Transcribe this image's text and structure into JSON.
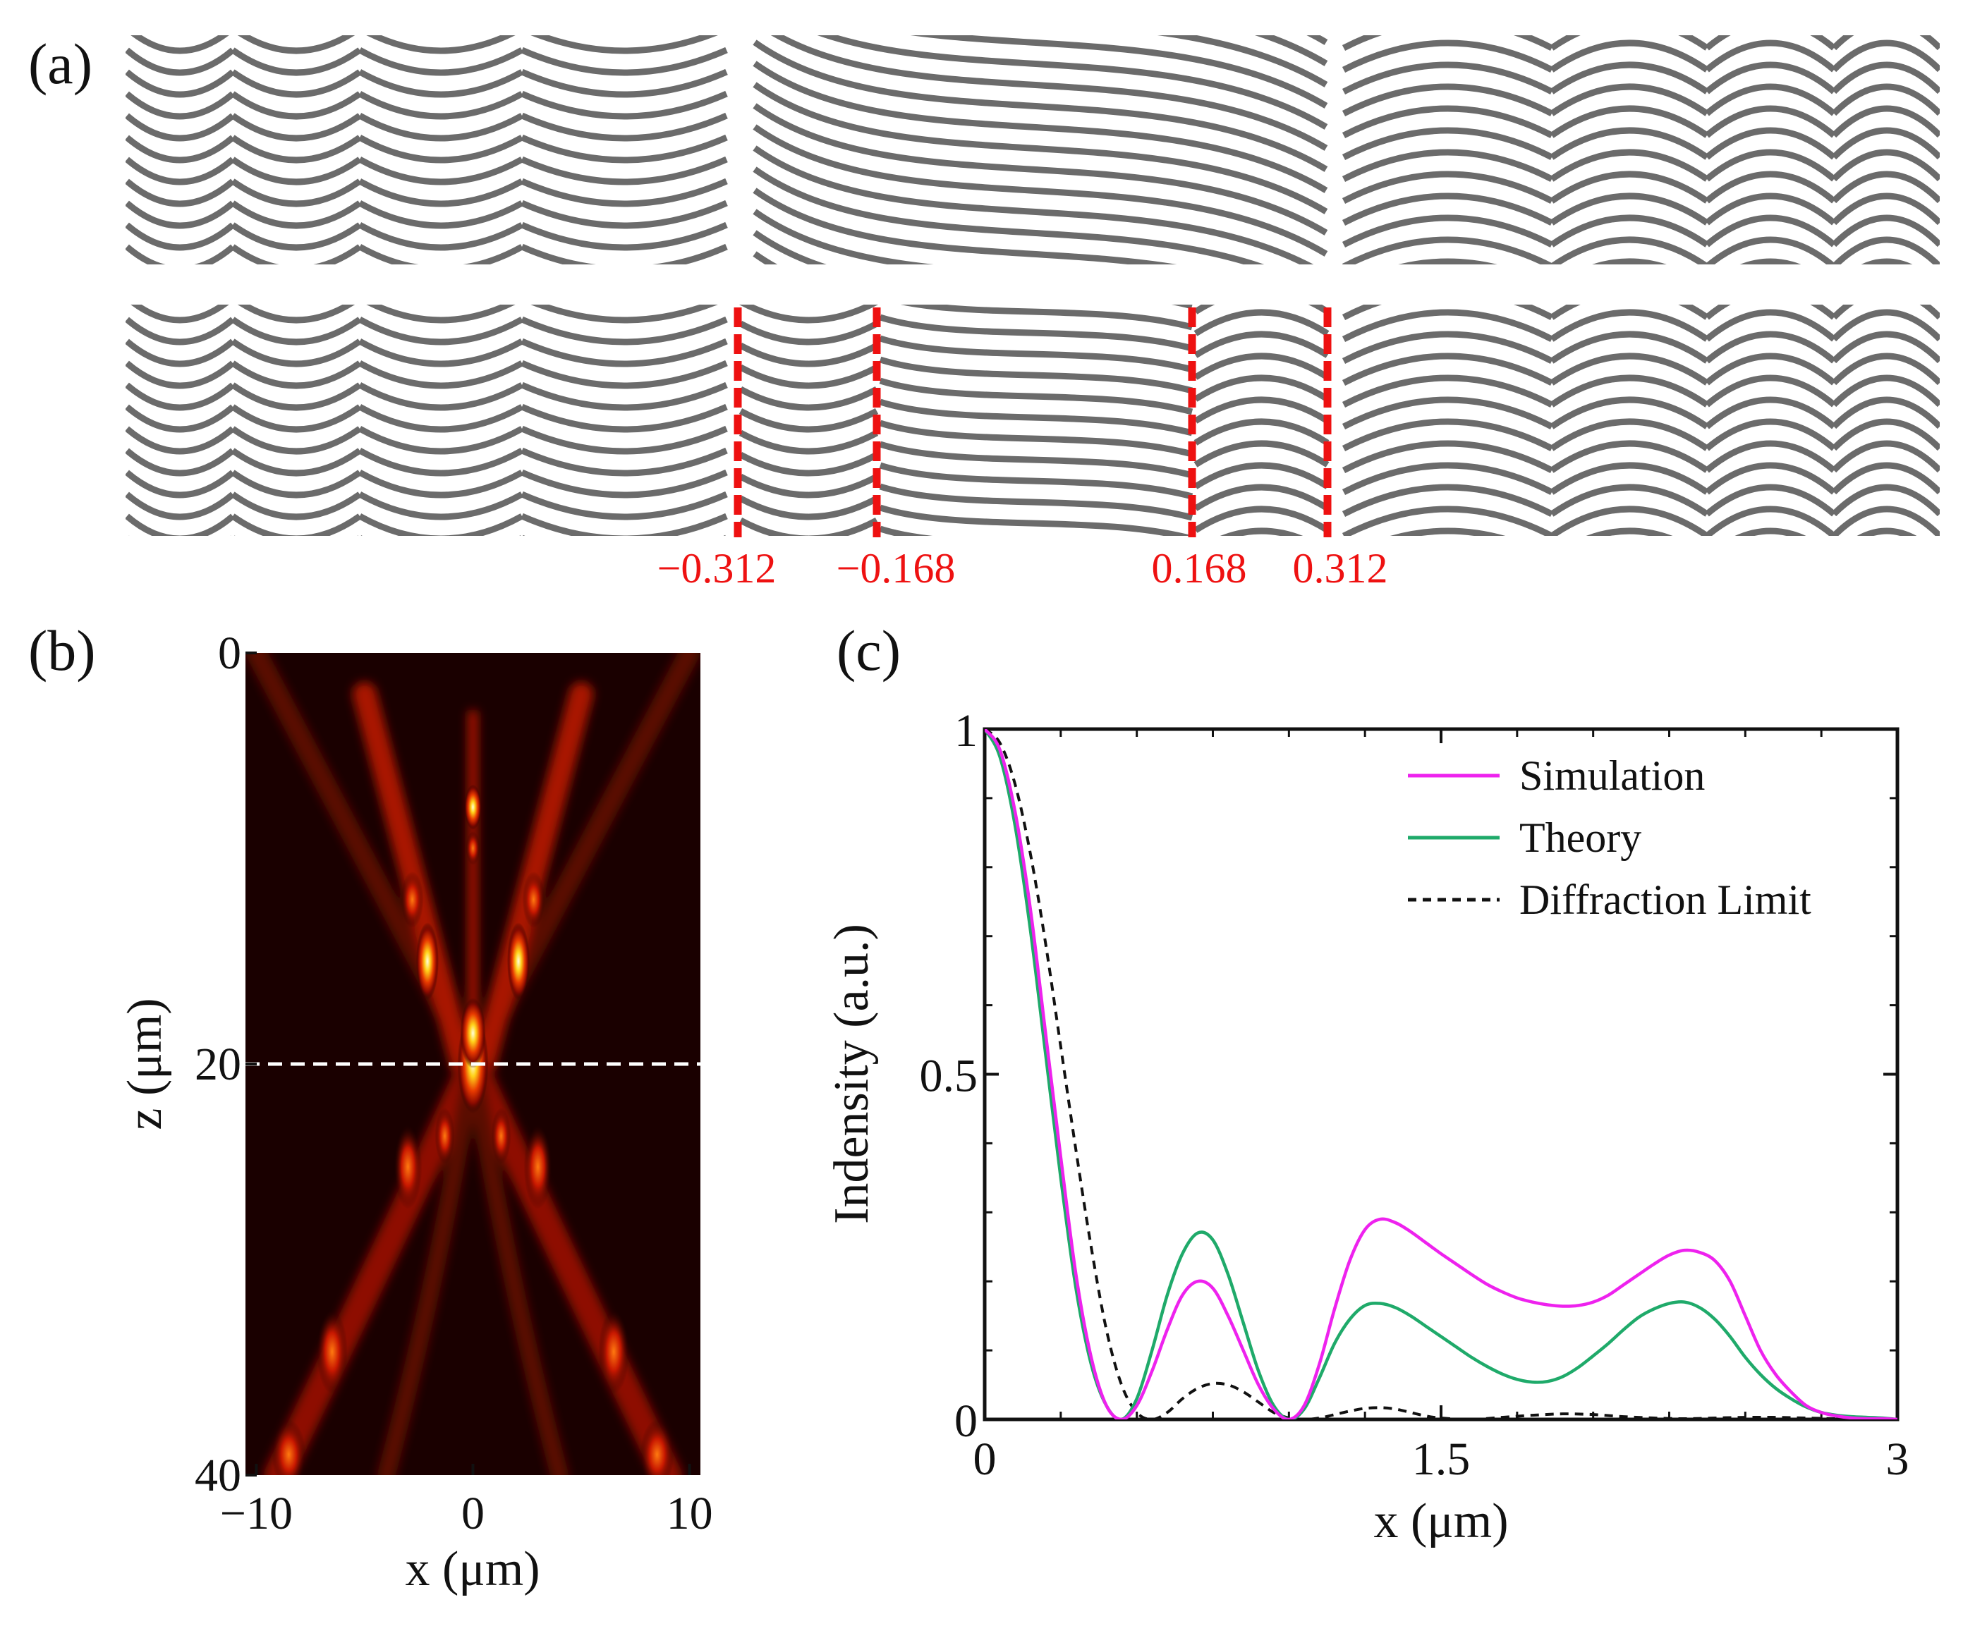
{
  "panel_labels": {
    "a": "(a)",
    "b": "(b)",
    "c": "(c)"
  },
  "panel_a": {
    "boundary_labels": [
      "−0.312",
      "−0.168",
      "0.168",
      "0.312"
    ],
    "line_color": "#6b6b6b",
    "boundary_color": "#ee1111"
  },
  "chart_data": [
    {
      "panel": "b",
      "type": "heatmap",
      "xlabel": "x (μm)",
      "ylabel": "z (μm)",
      "xlim": [
        -10.5,
        10.5
      ],
      "ylim": [
        0,
        40
      ],
      "y_inverted": true,
      "xticks": [
        -10,
        0,
        10
      ],
      "yticks": [
        0,
        20,
        40
      ],
      "xtick_labels": [
        "−10",
        "0",
        "10"
      ],
      "ytick_labels": [
        "0",
        "20",
        "40"
      ],
      "colormap": "hot",
      "focus_line_z": 20,
      "focus_line_color": "#ffffff"
    },
    {
      "panel": "c",
      "type": "line",
      "xlabel": "x (μm)",
      "ylabel": "Indensity (a.u.)",
      "xlim": [
        0,
        3
      ],
      "ylim": [
        0,
        1
      ],
      "xticks": [
        0,
        1.5,
        3
      ],
      "yticks": [
        0,
        0.5,
        1
      ],
      "xtick_labels": [
        "0",
        "1.5",
        "3"
      ],
      "ytick_labels": [
        "0",
        "0.5",
        "1"
      ],
      "legend_position": "top-right",
      "series": [
        {
          "name": "Simulation",
          "color": "#ee22ee",
          "style": "solid",
          "x": [
            0,
            0.05,
            0.1,
            0.15,
            0.2,
            0.25,
            0.3,
            0.35,
            0.4,
            0.45,
            0.5,
            0.55,
            0.6,
            0.65,
            0.7,
            0.75,
            0.8,
            0.85,
            0.9,
            0.95,
            1.0,
            1.05,
            1.1,
            1.15,
            1.2,
            1.25,
            1.3,
            1.35,
            1.4,
            1.45,
            1.5,
            1.55,
            1.6,
            1.65,
            1.7,
            1.75,
            1.8,
            1.85,
            1.9,
            1.95,
            2.0,
            2.05,
            2.1,
            2.15,
            2.2,
            2.25,
            2.3,
            2.35,
            2.4,
            2.45,
            2.5,
            2.55,
            2.6,
            2.65,
            2.7,
            2.75,
            2.8,
            2.85,
            2.9,
            2.95,
            3.0
          ],
          "y": [
            1.0,
            0.97,
            0.88,
            0.74,
            0.56,
            0.38,
            0.21,
            0.09,
            0.02,
            0.0,
            0.02,
            0.07,
            0.13,
            0.18,
            0.2,
            0.19,
            0.15,
            0.1,
            0.05,
            0.015,
            0.0,
            0.02,
            0.08,
            0.16,
            0.23,
            0.275,
            0.29,
            0.285,
            0.272,
            0.256,
            0.24,
            0.225,
            0.21,
            0.196,
            0.185,
            0.176,
            0.17,
            0.166,
            0.164,
            0.165,
            0.17,
            0.18,
            0.195,
            0.21,
            0.225,
            0.238,
            0.245,
            0.242,
            0.23,
            0.2,
            0.15,
            0.1,
            0.065,
            0.04,
            0.02,
            0.01,
            0.005,
            0.002,
            0.001,
            0.001,
            0.0
          ]
        },
        {
          "name": "Theory",
          "color": "#1faa6a",
          "style": "solid",
          "x": [
            0,
            0.05,
            0.1,
            0.15,
            0.2,
            0.25,
            0.3,
            0.35,
            0.4,
            0.45,
            0.5,
            0.55,
            0.6,
            0.65,
            0.7,
            0.75,
            0.8,
            0.85,
            0.9,
            0.95,
            1.0,
            1.05,
            1.1,
            1.15,
            1.2,
            1.25,
            1.3,
            1.35,
            1.4,
            1.45,
            1.5,
            1.55,
            1.6,
            1.65,
            1.7,
            1.75,
            1.8,
            1.85,
            1.9,
            1.95,
            2.0,
            2.05,
            2.1,
            2.15,
            2.2,
            2.25,
            2.3,
            2.35,
            2.4,
            2.45,
            2.5,
            2.55,
            2.6,
            2.65,
            2.7,
            2.75,
            2.8,
            2.85,
            2.9,
            2.95,
            3.0
          ],
          "y": [
            1.0,
            0.96,
            0.86,
            0.71,
            0.53,
            0.35,
            0.19,
            0.08,
            0.02,
            0.0,
            0.03,
            0.1,
            0.18,
            0.24,
            0.27,
            0.26,
            0.21,
            0.14,
            0.07,
            0.02,
            0.0,
            0.015,
            0.06,
            0.11,
            0.145,
            0.165,
            0.168,
            0.162,
            0.15,
            0.135,
            0.12,
            0.105,
            0.09,
            0.077,
            0.066,
            0.058,
            0.054,
            0.055,
            0.062,
            0.075,
            0.092,
            0.11,
            0.13,
            0.148,
            0.16,
            0.168,
            0.17,
            0.162,
            0.145,
            0.12,
            0.09,
            0.065,
            0.045,
            0.03,
            0.018,
            0.01,
            0.006,
            0.004,
            0.003,
            0.002,
            0.0
          ]
        },
        {
          "name": "Diffraction Limit",
          "color": "#111111",
          "style": "dashed",
          "x": [
            0,
            0.05,
            0.1,
            0.15,
            0.2,
            0.25,
            0.3,
            0.35,
            0.4,
            0.45,
            0.5,
            0.55,
            0.6,
            0.65,
            0.7,
            0.75,
            0.8,
            0.85,
            0.9,
            0.95,
            1.0,
            1.05,
            1.1,
            1.15,
            1.2,
            1.25,
            1.3,
            1.35,
            1.4,
            1.45,
            1.5,
            1.6,
            1.7,
            1.8,
            1.9,
            2.0,
            2.1,
            2.2,
            2.3,
            2.4,
            2.5,
            2.6,
            2.7,
            2.8,
            2.9,
            3.0
          ],
          "y": [
            1.0,
            0.98,
            0.92,
            0.82,
            0.69,
            0.54,
            0.39,
            0.25,
            0.13,
            0.05,
            0.01,
            0.0,
            0.01,
            0.03,
            0.045,
            0.052,
            0.05,
            0.04,
            0.025,
            0.01,
            0.002,
            0.0,
            0.002,
            0.007,
            0.012,
            0.016,
            0.017,
            0.015,
            0.01,
            0.005,
            0.002,
            0.0,
            0.003,
            0.006,
            0.008,
            0.007,
            0.004,
            0.002,
            0.001,
            0.002,
            0.003,
            0.003,
            0.002,
            0.001,
            0.0,
            0.0
          ]
        }
      ]
    }
  ]
}
